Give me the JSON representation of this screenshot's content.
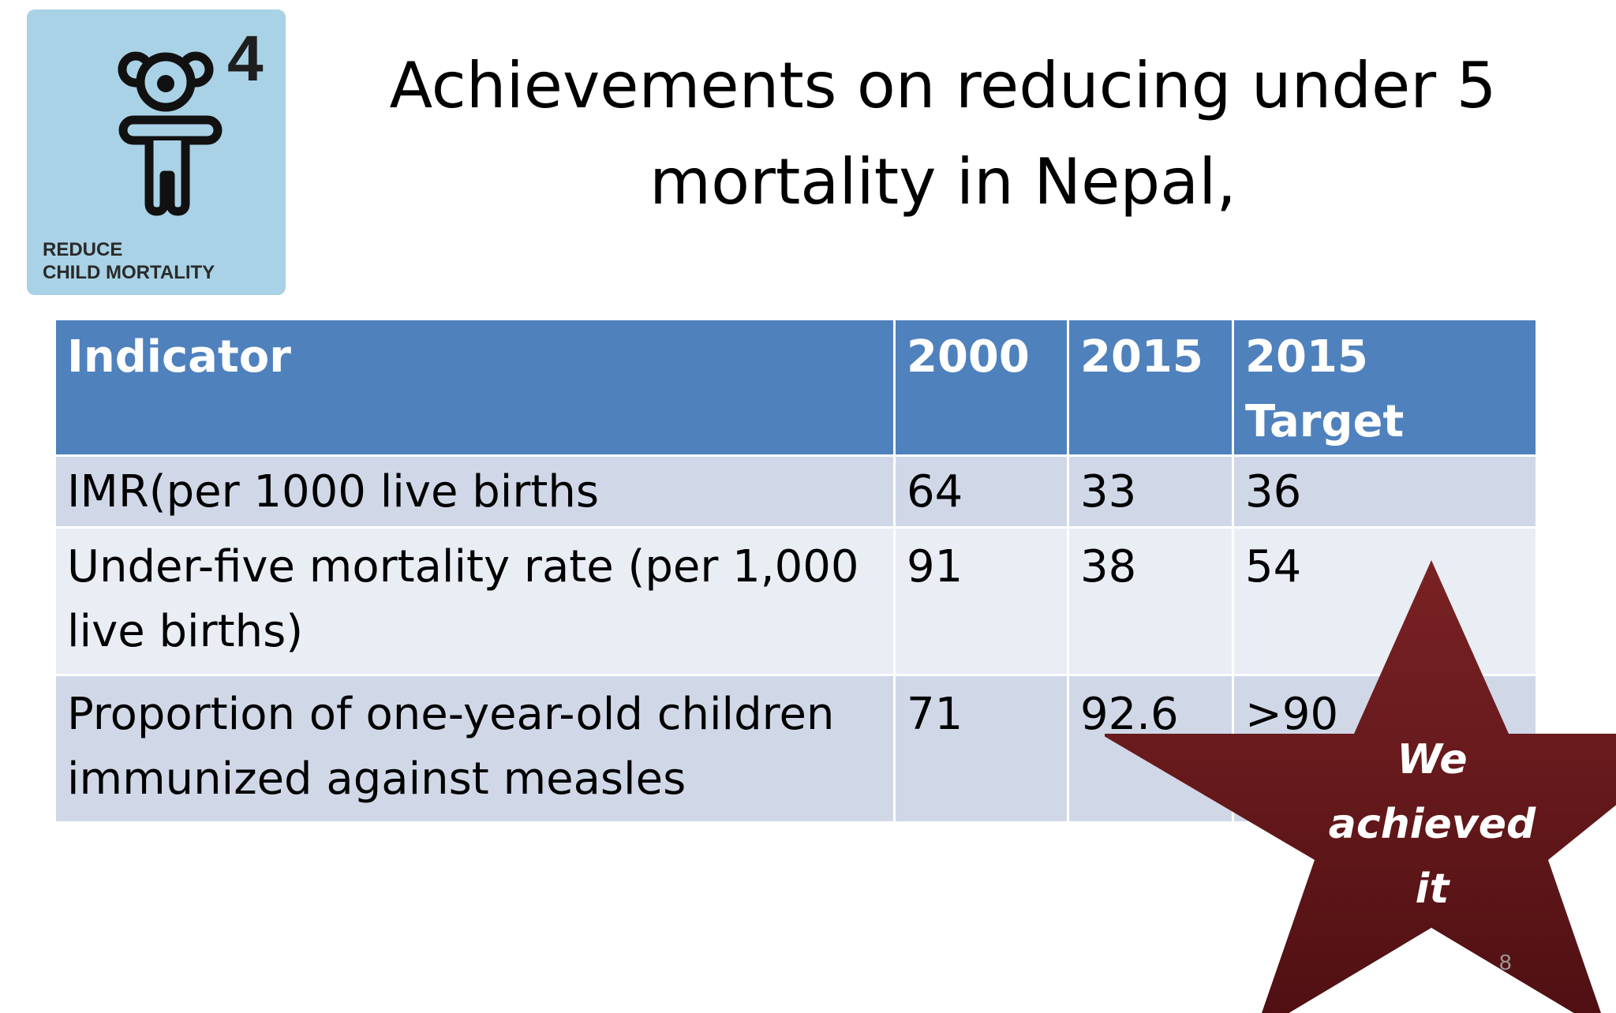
{
  "mdg_icon": {
    "number": "4",
    "caption_line1": "REDUCE",
    "caption_line2": "CHILD MORTALITY",
    "icon_name": "child-figure-icon",
    "background_color": "#a9d2e6"
  },
  "title": {
    "line1": "Achievements on reducing under 5",
    "line2": "mortality in Nepal,"
  },
  "table": {
    "headers": [
      "Indicator",
      "2000",
      "2015",
      "2015 Target"
    ],
    "rows": [
      [
        "IMR(per 1000 live births",
        "64",
        "33",
        "36"
      ],
      [
        "Under-five mortality rate (per 1,000 live births)",
        "91",
        "38",
        "54"
      ],
      [
        "Proportion of one-year-old children immunized against measles",
        "71",
        "92.6",
        ">90"
      ]
    ],
    "header_color": "#4f81bd",
    "row_colors": [
      "#d0d8e8",
      "#e9edf4"
    ]
  },
  "star_badge": {
    "line1": "We",
    "line2": "achieved",
    "line3": "it",
    "color": "#6a1a1c"
  },
  "slide_number": "8"
}
